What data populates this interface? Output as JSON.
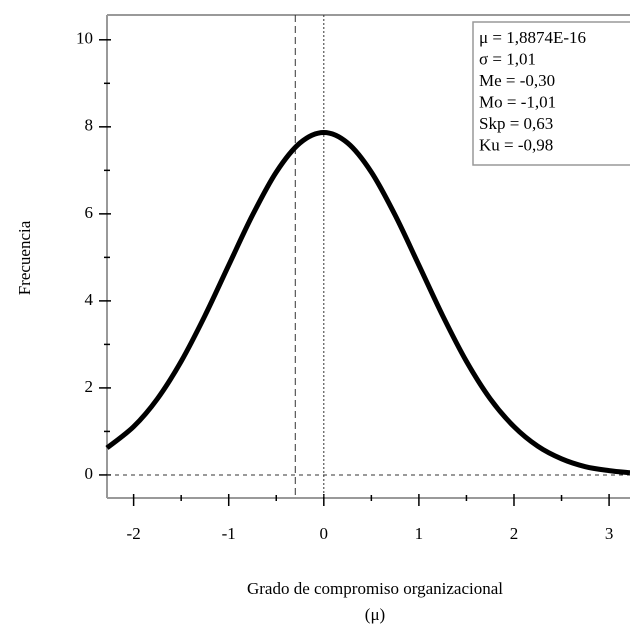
{
  "chart_data": {
    "type": "line",
    "x_label": [
      "Grado de compromiso organizacional",
      "(μ)"
    ],
    "y_label": "Frecuencia",
    "x": [
      -2.28,
      -2,
      -1.75,
      -1.5,
      -1.25,
      -1,
      -0.75,
      -0.5,
      -0.25,
      0,
      0.25,
      0.5,
      0.75,
      1,
      1.25,
      1.5,
      1.75,
      2,
      2.25,
      2.5,
      2.75,
      3,
      3.22
    ],
    "series": [
      {
        "color": "#000000",
        "values": [
          0.62,
          1.11,
          1.75,
          2.61,
          3.66,
          4.82,
          5.97,
          6.96,
          7.63,
          7.87,
          7.63,
          6.96,
          5.97,
          4.82,
          3.66,
          2.61,
          1.75,
          1.11,
          0.66,
          0.37,
          0.19,
          0.1,
          0.05
        ]
      }
    ],
    "xlim": [
      -2.28,
      3.22
    ],
    "ylim": [
      -0.53,
      10.57
    ],
    "xticks": [
      -2,
      -1,
      0,
      1,
      2,
      3
    ],
    "yticks": [
      0,
      2,
      4,
      6,
      8,
      10
    ],
    "xminor_ticks": [
      -1.5,
      -0.5,
      0.5,
      1.5,
      2.5
    ],
    "yminor_ticks": [
      1,
      3,
      5,
      7,
      9
    ],
    "vlines": [
      -0.3,
      0
    ],
    "hlines": [
      0
    ],
    "annotations": [
      "μ = 1,8874E-16",
      "σ = 1,01",
      "Me = -0,30",
      "Mo = -1,01",
      "Skp = 0,63",
      "Ku = -0,98"
    ]
  }
}
